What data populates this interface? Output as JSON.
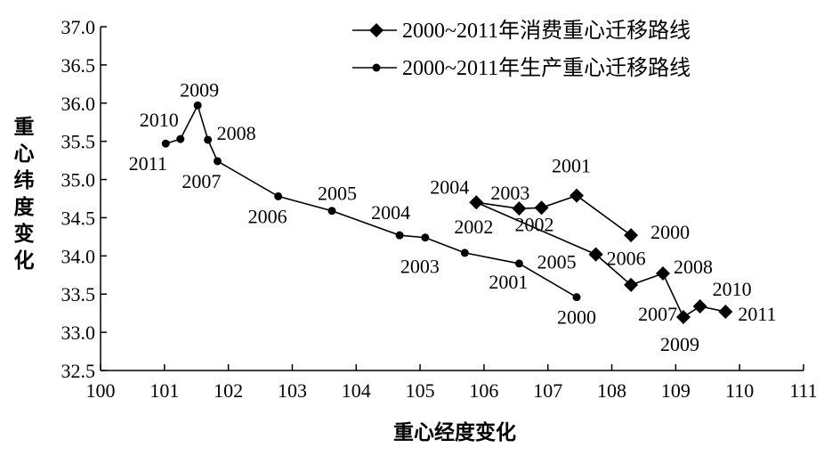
{
  "chart_data": {
    "type": "line",
    "xlabel": "重心经度变化",
    "ylabel": "重心纬度变化",
    "xlim": [
      100,
      111
    ],
    "ylim": [
      32.5,
      37.0
    ],
    "x_ticks": [
      "100",
      "101",
      "102",
      "103",
      "104",
      "105",
      "106",
      "107",
      "108",
      "109",
      "110",
      "111"
    ],
    "y_ticks": [
      "32.5",
      "33.0",
      "33.5",
      "34.0",
      "34.5",
      "35.0",
      "35.5",
      "36.0",
      "36.5",
      "37.0"
    ],
    "grid": false,
    "legend_position": "top-right",
    "series": [
      {
        "name": "2000~2011年消费重心迁移路线",
        "marker": "diamond",
        "color": "#000000",
        "points": [
          {
            "year": "2000",
            "x": 108.3,
            "y": 34.27
          },
          {
            "year": "2001",
            "x": 107.45,
            "y": 34.79
          },
          {
            "year": "2002",
            "x": 106.9,
            "y": 34.63
          },
          {
            "year": "2003",
            "x": 106.55,
            "y": 34.62
          },
          {
            "year": "2004",
            "x": 105.88,
            "y": 34.7
          },
          {
            "year": "2005",
            "x": 107.75,
            "y": 34.02
          },
          {
            "year": "2006",
            "x": 107.75,
            "y": 34.02
          },
          {
            "year": "2007",
            "x": 108.3,
            "y": 33.62
          },
          {
            "year": "2008",
            "x": 108.8,
            "y": 33.77
          },
          {
            "year": "2009",
            "x": 109.12,
            "y": 33.2
          },
          {
            "year": "2010",
            "x": 109.38,
            "y": 33.34
          },
          {
            "year": "2011",
            "x": 109.78,
            "y": 33.27
          }
        ]
      },
      {
        "name": "2000~2011年生产重心迁移路线",
        "marker": "circle",
        "color": "#000000",
        "points": [
          {
            "year": "2000",
            "x": 107.45,
            "y": 33.46
          },
          {
            "year": "2001",
            "x": 106.55,
            "y": 33.9
          },
          {
            "year": "2002",
            "x": 105.7,
            "y": 34.04
          },
          {
            "year": "2003",
            "x": 105.08,
            "y": 34.24
          },
          {
            "year": "2004",
            "x": 104.68,
            "y": 34.27
          },
          {
            "year": "2005",
            "x": 103.62,
            "y": 34.59
          },
          {
            "year": "2006",
            "x": 102.78,
            "y": 34.78
          },
          {
            "year": "2007",
            "x": 101.83,
            "y": 35.24
          },
          {
            "year": "2008",
            "x": 101.68,
            "y": 35.52
          },
          {
            "year": "2009",
            "x": 101.52,
            "y": 35.97
          },
          {
            "year": "2010",
            "x": 101.25,
            "y": 35.53
          },
          {
            "year": "2011",
            "x": 101.02,
            "y": 35.47
          }
        ]
      }
    ]
  }
}
